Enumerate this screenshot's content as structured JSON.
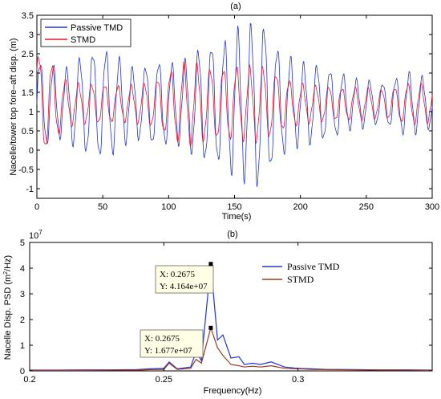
{
  "chart_data": [
    {
      "type": "line",
      "panel_label": "(a)",
      "xlabel": "Time(s)",
      "ylabel": "Nacelle/tower top fore–aft disp. (m)",
      "xlim": [
        0,
        300
      ],
      "ylim": [
        -1.25,
        3.5
      ],
      "xticks": [
        0,
        50,
        100,
        150,
        200,
        250,
        300
      ],
      "yticks": [
        -1,
        -0.5,
        0,
        0.5,
        1,
        1.5,
        2,
        2.5,
        3,
        3.5
      ],
      "ytick_labels": [
        "-1",
        "-0.5",
        "0",
        "0.5",
        "1",
        "1.5",
        "2",
        "2.5",
        "3",
        "3.5"
      ],
      "legend_position": "top-left",
      "sampling": {
        "dt": 0.5,
        "period": 10.0,
        "mean": 1.2
      },
      "series": [
        {
          "name": "Passive TMD",
          "color": "#2233ee",
          "envelope": {
            "t": [
              0,
              10,
              20,
              30,
              40,
              50,
              60,
              70,
              80,
              90,
              100,
              110,
              120,
              130,
              140,
              150,
              160,
              170,
              180,
              190,
              200,
              210,
              220,
              230,
              240,
              250,
              260,
              270,
              280,
              290,
              300
            ],
            "amp": [
              1.1,
              1.0,
              0.8,
              1.1,
              1.3,
              1.4,
              1.2,
              0.9,
              0.9,
              1.1,
              1.0,
              1.0,
              1.3,
              1.5,
              1.5,
              1.8,
              1.9,
              2.15,
              1.5,
              1.2,
              1.0,
              1.0,
              0.9,
              0.8,
              0.6,
              0.6,
              0.5,
              0.6,
              0.8,
              0.7,
              0.6
            ]
          }
        },
        {
          "name": "STMD",
          "color": "#e8162d",
          "envelope": {
            "t": [
              0,
              10,
              20,
              30,
              40,
              50,
              60,
              70,
              80,
              90,
              100,
              110,
              120,
              130,
              140,
              150,
              160,
              170,
              180,
              190,
              200,
              210,
              220,
              230,
              240,
              250,
              260,
              270,
              280,
              290,
              300
            ],
            "amp": [
              1.3,
              1.1,
              0.6,
              0.5,
              0.5,
              0.5,
              0.45,
              0.45,
              0.5,
              0.6,
              0.8,
              1.0,
              1.0,
              0.9,
              0.9,
              0.9,
              0.9,
              0.95,
              0.8,
              0.6,
              0.5,
              0.45,
              0.45,
              0.4,
              0.4,
              0.4,
              0.35,
              0.4,
              0.5,
              0.5,
              0.45
            ]
          }
        }
      ]
    },
    {
      "type": "line",
      "panel_label": "(b)",
      "xlabel": "Frequency(Hz)",
      "ylabel": "Nacelle Disp. PSD (m²/Hz)",
      "ylabel_base": "Nacelle Disp. PSD (m",
      "ylabel_sup": "2",
      "ylabel_end": "/Hz)",
      "y_multiplier": "10",
      "y_multiplier_exp": "7",
      "xlim": [
        0.2,
        0.35
      ],
      "ylim": [
        0,
        5
      ],
      "xticks": [
        0.2,
        0.25,
        0.3
      ],
      "xtick_labels": [
        "0.2",
        "0.25",
        "0.3"
      ],
      "yticks": [
        0,
        1,
        2,
        3,
        4,
        5
      ],
      "ytick_labels": [
        "0",
        "1",
        "2",
        "3",
        "4",
        "5"
      ],
      "legend_position": "top-right",
      "series": [
        {
          "name": "Passive TMD",
          "color": "#2233ee",
          "x": [
            0.2,
            0.21,
            0.22,
            0.23,
            0.24,
            0.245,
            0.25,
            0.252,
            0.255,
            0.26,
            0.262,
            0.264,
            0.2675,
            0.27,
            0.272,
            0.275,
            0.278,
            0.28,
            0.283,
            0.286,
            0.29,
            0.295,
            0.3,
            0.305,
            0.31,
            0.32,
            0.33,
            0.34,
            0.35
          ],
          "y": [
            0.03,
            0.03,
            0.04,
            0.04,
            0.05,
            0.08,
            0.1,
            0.35,
            0.08,
            0.15,
            0.75,
            0.4,
            4.164,
            1.2,
            1.4,
            0.5,
            0.55,
            0.25,
            0.3,
            0.25,
            0.35,
            0.15,
            0.1,
            0.08,
            0.06,
            0.05,
            0.04,
            0.04,
            0.03
          ]
        },
        {
          "name": "STMD",
          "color": "#9b3a22",
          "x": [
            0.2,
            0.21,
            0.22,
            0.23,
            0.24,
            0.245,
            0.25,
            0.252,
            0.255,
            0.26,
            0.262,
            0.264,
            0.2675,
            0.27,
            0.272,
            0.275,
            0.278,
            0.28,
            0.283,
            0.286,
            0.29,
            0.295,
            0.3,
            0.305,
            0.31,
            0.32,
            0.33,
            0.34,
            0.35
          ],
          "y": [
            0.02,
            0.02,
            0.02,
            0.03,
            0.03,
            0.05,
            0.06,
            0.3,
            0.06,
            0.1,
            0.45,
            0.3,
            1.677,
            0.9,
            0.6,
            0.25,
            0.2,
            0.15,
            0.18,
            0.15,
            0.2,
            0.1,
            0.08,
            0.06,
            0.05,
            0.04,
            0.03,
            0.03,
            0.02
          ]
        }
      ],
      "datatips": [
        {
          "x_label": "X: 0.2675",
          "y_label": "Y: 4.164e+07",
          "x": 0.2675,
          "y": 4.164
        },
        {
          "x_label": "X: 0.2675",
          "y_label": "Y: 1.677e+07",
          "x": 0.2675,
          "y": 1.677
        }
      ]
    }
  ]
}
